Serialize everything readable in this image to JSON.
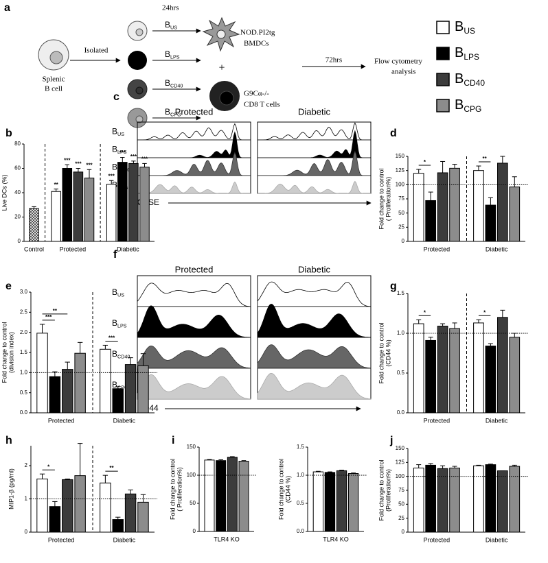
{
  "schematic": {
    "panel": "a",
    "cell_lines": [
      "Splenic",
      "B cell"
    ],
    "isolated": "Isolated",
    "time1": "24hrs",
    "bmdc": [
      "NOD.PI2tg",
      "BMDCs"
    ],
    "plus": "+",
    "tcell": [
      "G9Cα-/-",
      "CD8 T cells"
    ],
    "time2": "72hrs",
    "flow": [
      "Flow cytometry",
      "analysis"
    ],
    "legend_colors": [
      "#ffffff",
      "#000000",
      "#3c3c3c",
      "#8c8c8c"
    ]
  },
  "labels": [
    {
      "main": "B",
      "sub": "US"
    },
    {
      "main": "B",
      "sub": "LPS"
    },
    {
      "main": "B",
      "sub": "CD40"
    },
    {
      "main": "B",
      "sub": "CPG"
    }
  ],
  "histograms": [
    {
      "panel": "c",
      "columns": [
        "Protected",
        "Diabetic"
      ],
      "xlabel": "CFSE"
    },
    {
      "panel": "f",
      "columns": [
        "Protected",
        "Diabetic"
      ],
      "xlabel": "CD44"
    }
  ],
  "chart_data": [
    {
      "type": "bar",
      "panel": "b",
      "ylabel": [
        "Live DCs (%)"
      ],
      "categories": [
        "Control",
        "Protected",
        "Diabetic"
      ],
      "ylim": [
        0,
        80
      ],
      "yticks": [
        0,
        20,
        40,
        60,
        80
      ],
      "dividers": true,
      "series": [
        {
          "color": "#999999",
          "hatch": true,
          "values": [
            27,
            null,
            null
          ],
          "errors": [
            1.5,
            null,
            null
          ]
        },
        {
          "color": "#ffffff",
          "values": [
            null,
            41,
            47
          ],
          "errors": [
            null,
            2,
            3
          ],
          "significance": [
            null,
            "**",
            "***"
          ]
        },
        {
          "color": "#000000",
          "values": [
            null,
            60,
            65
          ],
          "errors": [
            null,
            3,
            4
          ],
          "significance": [
            null,
            "***",
            "***"
          ]
        },
        {
          "color": "#3c3c3c",
          "values": [
            null,
            57,
            64
          ],
          "errors": [
            null,
            3,
            2
          ],
          "significance": [
            null,
            "***",
            "***"
          ]
        },
        {
          "color": "#8c8c8c",
          "values": [
            null,
            52,
            61
          ],
          "errors": [
            null,
            7,
            3
          ],
          "significance": [
            null,
            "***",
            "***"
          ]
        }
      ]
    },
    {
      "type": "bar",
      "panel": "d",
      "ylabel": [
        "Fold change to control",
        "( Proliferation%)"
      ],
      "categories": [
        "Protected",
        "Diabetic"
      ],
      "ylim": [
        0,
        150
      ],
      "yticks": [
        0,
        25,
        50,
        75,
        100,
        125,
        150
      ],
      "dividers": true,
      "refline": 100,
      "brackets": [
        {
          "category": 0,
          "from": 0,
          "to": 1,
          "label": "*"
        },
        {
          "category": 1,
          "from": 0,
          "to": 1,
          "label": "**"
        }
      ],
      "series": [
        {
          "color": "#ffffff",
          "values": [
            120,
            125
          ],
          "errors": [
            7,
            8
          ]
        },
        {
          "color": "#000000",
          "values": [
            72,
            64
          ],
          "errors": [
            15,
            13
          ]
        },
        {
          "color": "#3c3c3c",
          "values": [
            121,
            138
          ],
          "errors": [
            20,
            12
          ]
        },
        {
          "color": "#8c8c8c",
          "values": [
            129,
            96
          ],
          "errors": [
            7,
            18
          ]
        }
      ]
    },
    {
      "type": "bar",
      "panel": "e",
      "ylabel": [
        "Fold change to control",
        "(division index)"
      ],
      "categories": [
        "Protected",
        "Diabetic"
      ],
      "ylim": [
        0,
        3
      ],
      "yticks": [
        {
          "value": 0,
          "label": "0.0"
        },
        0.5,
        {
          "value": 1,
          "label": "1.0"
        },
        1.5,
        {
          "value": 2,
          "label": "2.0"
        },
        2.5,
        {
          "value": 3,
          "label": "3.0"
        }
      ],
      "dividers": true,
      "refline": 1,
      "brackets": [
        {
          "category": 0,
          "from": 0,
          "to": 1,
          "label": "***"
        },
        {
          "category": 0,
          "from": 0,
          "to": 2,
          "label": "**"
        },
        {
          "category": 1,
          "from": 0,
          "to": 1,
          "label": "***"
        }
      ],
      "series": [
        {
          "color": "#ffffff",
          "values": [
            1.98,
            1.58
          ],
          "errors": [
            0.22,
            0.1
          ]
        },
        {
          "color": "#000000",
          "values": [
            0.9,
            0.6
          ],
          "errors": [
            0.12,
            0.05
          ]
        },
        {
          "color": "#3c3c3c",
          "values": [
            1.08,
            1.2
          ],
          "errors": [
            0.18,
            0.17
          ]
        },
        {
          "color": "#8c8c8c",
          "values": [
            1.48,
            1.17
          ],
          "errors": [
            0.27,
            0.3
          ]
        }
      ]
    },
    {
      "type": "bar",
      "panel": "g",
      "ylabel": [
        "Fold change to control",
        "(CD44 %)"
      ],
      "categories": [
        "Protected",
        "Diabetic"
      ],
      "ylim": [
        0,
        1.5
      ],
      "yticks": [
        {
          "value": 0,
          "label": "0.0"
        },
        0.5,
        {
          "value": 1,
          "label": "1.0"
        },
        1.5
      ],
      "dividers": true,
      "refline": 1,
      "brackets": [
        {
          "category": 0,
          "from": 0,
          "to": 1,
          "label": "*"
        },
        {
          "category": 1,
          "from": 0,
          "to": 1,
          "label": "*"
        }
      ],
      "series": [
        {
          "color": "#ffffff",
          "values": [
            1.12,
            1.13
          ],
          "errors": [
            0.05,
            0.04
          ]
        },
        {
          "color": "#000000",
          "values": [
            0.91,
            0.84
          ],
          "errors": [
            0.04,
            0.03
          ]
        },
        {
          "color": "#3c3c3c",
          "values": [
            1.09,
            1.2
          ],
          "errors": [
            0.03,
            0.09
          ]
        },
        {
          "color": "#8c8c8c",
          "values": [
            1.06,
            0.95
          ],
          "errors": [
            0.07,
            0.05
          ]
        }
      ]
    },
    {
      "type": "bar",
      "panel": "h",
      "ylabel": [
        "MIP1-β (pg/ml)"
      ],
      "categories": [
        "Protected",
        "Diabetic"
      ],
      "ylim": [
        0,
        2.6
      ],
      "yticks": [
        0,
        1,
        2
      ],
      "dividers": true,
      "refline": 1,
      "brackets": [
        {
          "category": 0,
          "from": 0,
          "to": 1,
          "label": "*"
        },
        {
          "category": 1,
          "from": 0,
          "to": 1,
          "label": "**"
        }
      ],
      "series": [
        {
          "color": "#ffffff",
          "values": [
            1.6,
            1.48
          ],
          "errors": [
            0.15,
            0.23
          ]
        },
        {
          "color": "#000000",
          "values": [
            0.77,
            0.38
          ],
          "errors": [
            0.15,
            0.07
          ]
        },
        {
          "color": "#3c3c3c",
          "values": [
            1.58,
            1.15
          ],
          "errors": [
            0.02,
            0.12
          ]
        },
        {
          "color": "#8c8c8c",
          "values": [
            1.7,
            0.9
          ],
          "errors": [
            0.97,
            0.23
          ]
        }
      ]
    },
    {
      "type": "bar",
      "panel": "i",
      "ylabel": [
        "Fold change to control",
        "( Proliferation%)"
      ],
      "categories": [
        "TLR4 KO"
      ],
      "ylim": [
        0,
        150
      ],
      "yticks": [
        0,
        50,
        100,
        150
      ],
      "dividers": false,
      "refline": 100,
      "series": [
        {
          "color": "#ffffff",
          "values": [
            127
          ],
          "errors": [
            1
          ]
        },
        {
          "color": "#000000",
          "values": [
            126
          ],
          "errors": [
            1.5
          ]
        },
        {
          "color": "#3c3c3c",
          "values": [
            132
          ],
          "errors": [
            1
          ]
        },
        {
          "color": "#8c8c8c",
          "values": [
            125
          ],
          "errors": [
            1
          ]
        }
      ]
    },
    {
      "type": "bar",
      "ylabel": [
        "Fold change to control",
        "(CD44 %)"
      ],
      "categories": [
        "TLR4 KO"
      ],
      "ylim": [
        0,
        1.5
      ],
      "yticks": [
        {
          "value": 0,
          "label": "0.0"
        },
        0.5,
        {
          "value": 1,
          "label": "1.0"
        },
        1.5
      ],
      "dividers": false,
      "refline": 1,
      "series": [
        {
          "color": "#ffffff",
          "values": [
            1.06
          ],
          "errors": [
            0.01
          ]
        },
        {
          "color": "#000000",
          "values": [
            1.05
          ],
          "errors": [
            0.01
          ]
        },
        {
          "color": "#3c3c3c",
          "values": [
            1.08
          ],
          "errors": [
            0.01
          ]
        },
        {
          "color": "#8c8c8c",
          "values": [
            1.03
          ],
          "errors": [
            0.01
          ]
        }
      ]
    },
    {
      "type": "bar",
      "panel": "j",
      "ylabel": [
        "Fold change to control",
        "(Proliferation%)"
      ],
      "categories": [
        "Protected",
        "Diabetic"
      ],
      "ylim": [
        0,
        150
      ],
      "yticks": [
        0,
        25,
        50,
        75,
        100,
        125,
        150
      ],
      "dividers": false,
      "refline": 100,
      "series": [
        {
          "color": "#ffffff",
          "values": [
            115,
            119
          ],
          "errors": [
            6,
            1
          ]
        },
        {
          "color": "#000000",
          "values": [
            120,
            121
          ],
          "errors": [
            3,
            1
          ]
        },
        {
          "color": "#3c3c3c",
          "values": [
            114,
            110
          ],
          "errors": [
            5,
            0
          ]
        },
        {
          "color": "#8c8c8c",
          "values": [
            115,
            118
          ],
          "errors": [
            3,
            2
          ]
        }
      ]
    }
  ]
}
